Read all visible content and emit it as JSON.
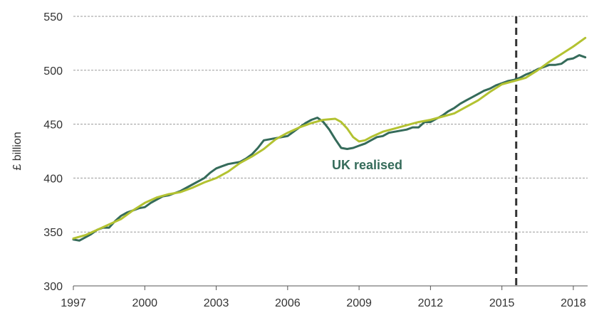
{
  "chart_data": {
    "type": "line",
    "ylabel": "£ billion",
    "xlim": [
      1997,
      2018.6
    ],
    "ylim": [
      300,
      550
    ],
    "x_ticks": [
      1997,
      2000,
      2003,
      2006,
      2009,
      2012,
      2015,
      2018
    ],
    "y_ticks": [
      300,
      350,
      400,
      450,
      500,
      550
    ],
    "grid": "horizontal-dashed",
    "vline_x": 2015.6,
    "annotation": "UK realised",
    "colors": {
      "uk_realised": "#356b5a",
      "trend": "#b3c231",
      "grid": "#9a9a9a",
      "vline": "#333333"
    },
    "series": [
      {
        "key": "uk_realised",
        "x": [
          1997.0,
          1997.25,
          1997.5,
          1997.75,
          1998.0,
          1998.25,
          1998.5,
          1998.75,
          1999.0,
          1999.25,
          1999.5,
          1999.75,
          2000.0,
          2000.25,
          2000.5,
          2000.75,
          2001.0,
          2001.25,
          2001.5,
          2001.75,
          2002.0,
          2002.25,
          2002.5,
          2002.75,
          2003.0,
          2003.25,
          2003.5,
          2003.75,
          2004.0,
          2004.25,
          2004.5,
          2004.75,
          2005.0,
          2005.25,
          2005.5,
          2005.75,
          2006.0,
          2006.25,
          2006.5,
          2006.75,
          2007.0,
          2007.25,
          2007.5,
          2007.75,
          2008.0,
          2008.25,
          2008.5,
          2008.75,
          2009.0,
          2009.25,
          2009.5,
          2009.75,
          2010.0,
          2010.25,
          2010.5,
          2010.75,
          2011.0,
          2011.25,
          2011.5,
          2011.75,
          2012.0,
          2012.25,
          2012.5,
          2012.75,
          2013.0,
          2013.25,
          2013.5,
          2013.75,
          2014.0,
          2014.25,
          2014.5,
          2014.75,
          2015.0,
          2015.25,
          2015.5,
          2015.75,
          2016.0,
          2016.25,
          2016.5,
          2016.75,
          2017.0,
          2017.25,
          2017.5,
          2017.75,
          2018.0,
          2018.25,
          2018.5
        ],
        "values": [
          343,
          342,
          345,
          348,
          352,
          354,
          354,
          360,
          365,
          368,
          370,
          372,
          373,
          377,
          380,
          383,
          384,
          386,
          388,
          391,
          394,
          397,
          400,
          405,
          409,
          411,
          413,
          414,
          415,
          418,
          422,
          428,
          435,
          436,
          437,
          438,
          439,
          443,
          447,
          451,
          454,
          456,
          452,
          445,
          436,
          428,
          427,
          428,
          430,
          432,
          435,
          438,
          439,
          442,
          443,
          444,
          445,
          447,
          447,
          452,
          452,
          455,
          458,
          462,
          465,
          469,
          472,
          475,
          478,
          481,
          483,
          486,
          488,
          490,
          491,
          493,
          496,
          498,
          501,
          503,
          505,
          505,
          506,
          510,
          511,
          514,
          512
        ]
      },
      {
        "key": "trend",
        "x": [
          1997.0,
          1997.5,
          1998.0,
          1998.5,
          1999.0,
          1999.5,
          2000.0,
          2000.5,
          2001.0,
          2001.5,
          2002.0,
          2002.5,
          2003.0,
          2003.5,
          2004.0,
          2004.5,
          2005.0,
          2005.5,
          2006.0,
          2006.5,
          2007.0,
          2007.5,
          2008.0,
          2008.25,
          2008.5,
          2008.75,
          2009.0,
          2009.25,
          2009.5,
          2010.0,
          2010.5,
          2011.0,
          2011.5,
          2012.0,
          2012.5,
          2013.0,
          2013.5,
          2014.0,
          2014.5,
          2015.0,
          2015.5,
          2016.0,
          2016.5,
          2017.0,
          2017.5,
          2018.0,
          2018.5
        ],
        "values": [
          344,
          347,
          352,
          357,
          362,
          370,
          377,
          382,
          385,
          387,
          391,
          396,
          400,
          406,
          414,
          420,
          427,
          436,
          442,
          447,
          451,
          454,
          455,
          452,
          446,
          438,
          434,
          435,
          438,
          443,
          446,
          449,
          452,
          454,
          457,
          460,
          466,
          472,
          480,
          487,
          490,
          493,
          500,
          508,
          515,
          522,
          530
        ]
      }
    ]
  }
}
